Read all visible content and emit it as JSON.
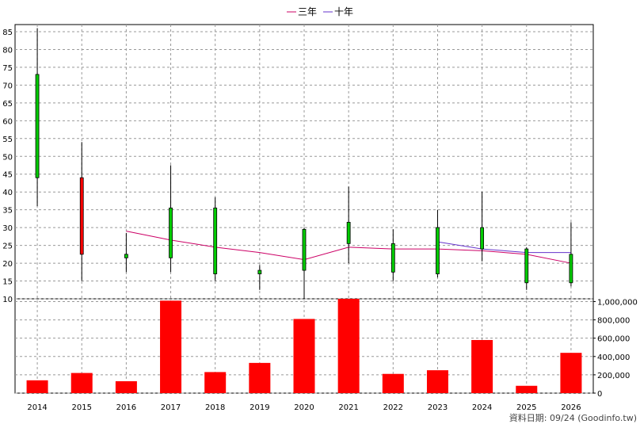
{
  "footer": "資料日期: 09/24  (Goodinfo.tw)",
  "chart_data": [
    {
      "type": "candlestick",
      "legend_position": "top-center",
      "legend": [
        {
          "name": "三年",
          "color": "#cc0066"
        },
        {
          "name": "十年",
          "color": "#6633cc"
        }
      ],
      "categories": [
        "2014",
        "2015",
        "2016",
        "2017",
        "2018",
        "2019",
        "2020",
        "2021",
        "2022",
        "2023",
        "2024",
        "2025",
        "2026"
      ],
      "ylim": [
        10,
        87
      ],
      "yticks": [
        "10",
        "15",
        "20",
        "25",
        "30",
        "35",
        "40",
        "45",
        "50",
        "55",
        "60",
        "65",
        "70",
        "75",
        "80",
        "85"
      ],
      "grid": true,
      "candles": [
        {
          "year": "2014",
          "open": 44,
          "close": 73,
          "high": 86,
          "low": 36
        },
        {
          "year": "2015",
          "open": 44,
          "close": 22.5,
          "high": 54,
          "low": 15
        },
        {
          "year": "2016",
          "open": 21.5,
          "close": 22.5,
          "high": 28.5,
          "low": 17.5
        },
        {
          "year": "2017",
          "open": 21.5,
          "close": 35.5,
          "high": 47.5,
          "low": 17.5
        },
        {
          "year": "2018",
          "open": 17,
          "close": 35.5,
          "high": 38.5,
          "low": 15
        },
        {
          "year": "2019",
          "open": 17,
          "close": 18,
          "high": 19.5,
          "low": 12.5
        },
        {
          "year": "2020",
          "open": 18,
          "close": 29.5,
          "high": 30,
          "low": 10
        },
        {
          "year": "2021",
          "open": 25.5,
          "close": 31.5,
          "high": 41.5,
          "low": 20
        },
        {
          "year": "2022",
          "open": 17.5,
          "close": 25.5,
          "high": 29.5,
          "low": 15
        },
        {
          "year": "2023",
          "open": 17,
          "close": 30,
          "high": 35,
          "low": 16
        },
        {
          "year": "2024",
          "open": 24,
          "close": 30,
          "high": 40,
          "low": 20.5
        },
        {
          "year": "2025",
          "open": 14.5,
          "close": 24,
          "high": 24.5,
          "low": 12.5
        },
        {
          "year": "2026",
          "open": 14.5,
          "close": 22.5,
          "high": 31.5,
          "low": 13.5
        }
      ],
      "series": [
        {
          "name": "三年",
          "color": "#cc0066",
          "values": [
            null,
            null,
            29,
            26.5,
            24.5,
            23,
            21,
            24.5,
            24,
            24,
            23.5,
            22.5,
            20
          ]
        },
        {
          "name": "十年",
          "color": "#6633cc",
          "values": [
            null,
            null,
            null,
            null,
            null,
            null,
            null,
            null,
            null,
            26,
            24,
            23,
            23
          ]
        }
      ]
    },
    {
      "type": "bar",
      "categories": [
        "2014",
        "2015",
        "2016",
        "2017",
        "2018",
        "2019",
        "2020",
        "2021",
        "2022",
        "2023",
        "2024",
        "2025",
        "2026"
      ],
      "values": [
        140000,
        220000,
        130000,
        1010000,
        230000,
        330000,
        810000,
        1030000,
        210000,
        250000,
        580000,
        80000,
        440000
      ],
      "ylim": [
        0,
        1030000
      ],
      "yticks": [
        "0",
        "200,000",
        "400,000",
        "600,000",
        "800,000",
        "1,000,000"
      ],
      "color": "#ff0000",
      "grid": true
    }
  ]
}
